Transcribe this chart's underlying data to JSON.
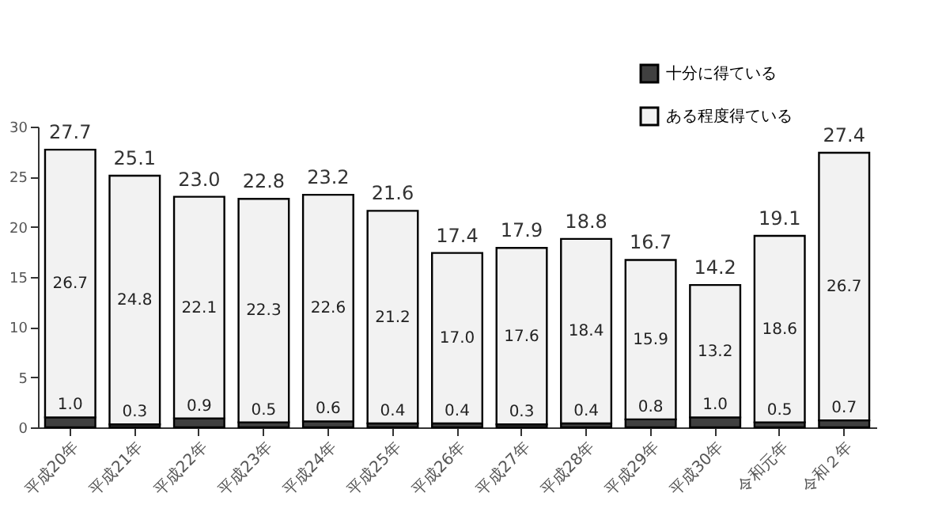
{
  "chart_data": {
    "type": "bar",
    "stacked": true,
    "categories": [
      "平成20年",
      "平成21年",
      "平成22年",
      "平成23年",
      "平成24年",
      "平成25年",
      "平成26年",
      "平成27年",
      "平成28年",
      "平成29年",
      "平成30年",
      "令和元年",
      "令和２年"
    ],
    "series": [
      {
        "name": "十分に得ている",
        "color": "#404040",
        "values": [
          1.0,
          0.3,
          0.9,
          0.5,
          0.6,
          0.4,
          0.4,
          0.3,
          0.4,
          0.8,
          1.0,
          0.5,
          0.7
        ],
        "value_labels": [
          "1.0",
          "0.3",
          "0.9",
          "0.5",
          "0.6",
          "0.4",
          "0.4",
          "0.3",
          "0.4",
          "0.8",
          "1.0",
          "0.5",
          "0.7"
        ]
      },
      {
        "name": "ある程度得ている",
        "color": "#f2f2f2",
        "values": [
          26.7,
          24.8,
          22.1,
          22.3,
          22.6,
          21.2,
          17.0,
          17.6,
          18.4,
          15.9,
          13.2,
          18.6,
          26.7
        ],
        "value_labels": [
          "26.7",
          "24.8",
          "22.1",
          "22.3",
          "22.6",
          "21.2",
          "17.0",
          "17.6",
          "18.4",
          "15.9",
          "13.2",
          "18.6",
          "26.7"
        ]
      }
    ],
    "totals": [
      "27.7",
      "25.1",
      "23.0",
      "22.8",
      "23.2",
      "21.6",
      "17.4",
      "17.9",
      "18.8",
      "16.7",
      "14.2",
      "19.1",
      "27.4"
    ],
    "ylim": [
      0,
      30
    ],
    "yticks": [
      0,
      5,
      10,
      15,
      20,
      25,
      30
    ],
    "grid": false,
    "legend": "top right"
  }
}
